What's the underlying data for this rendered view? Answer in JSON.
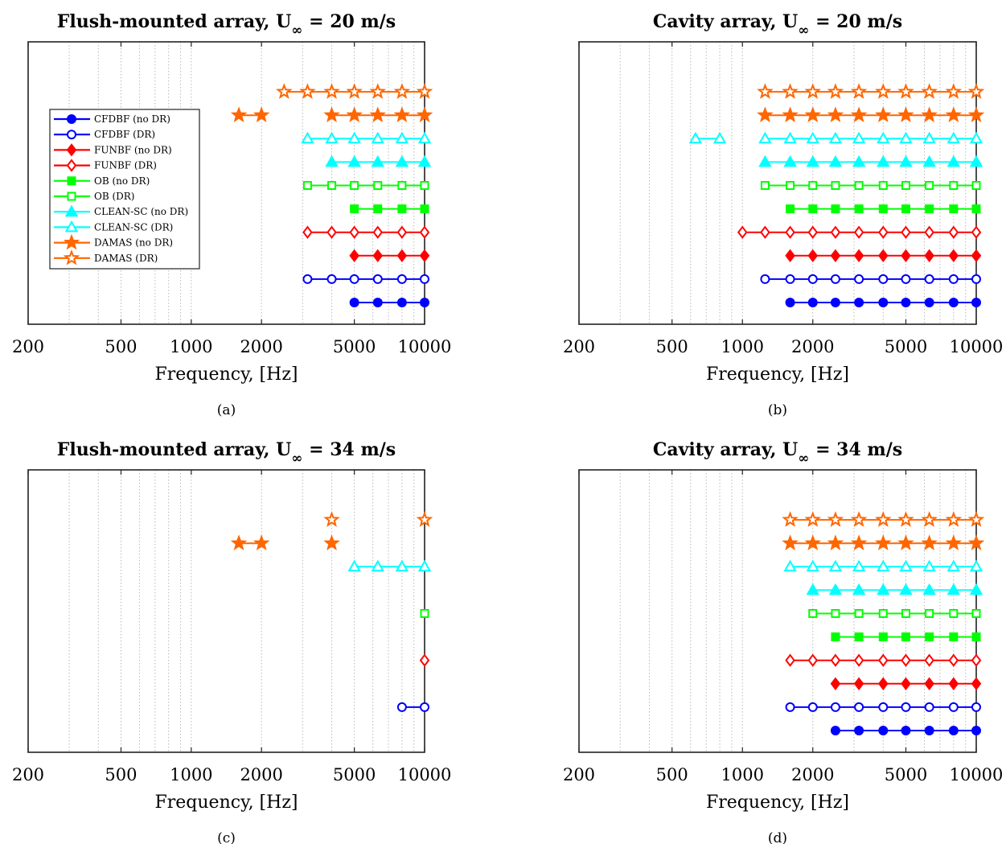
{
  "chart_data": [
    {
      "type": "scatter",
      "caption": "(a)",
      "title": {
        "pre": "Flush-mounted array, U",
        "sub": "∞",
        "post": " = 20 m/s"
      },
      "xlabel": "Frequency, [Hz]",
      "xscale": "log",
      "xlim": [
        200,
        10000
      ],
      "xticks": [
        200,
        500,
        1000,
        2000,
        5000,
        10000
      ],
      "xtick_labels": [
        "200",
        "500",
        "1000",
        "2000",
        "5000",
        "10000"
      ],
      "grid": "vertical dotted",
      "legend_position": "left",
      "series": [
        {
          "name": "CFDBF (no DR)",
          "color": "#0000FF",
          "marker": "circle",
          "filled": true,
          "row": 1,
          "segments": [
            [
              5000,
              6300,
              8000,
              10000
            ]
          ]
        },
        {
          "name": "CFDBF (DR)",
          "color": "#0000FF",
          "marker": "circle",
          "filled": false,
          "row": 2,
          "segments": [
            [
              3150,
              4000,
              5000,
              6300,
              8000,
              10000
            ]
          ]
        },
        {
          "name": "FUNBF (no DR)",
          "color": "#FF0000",
          "marker": "diamond",
          "filled": true,
          "row": 3,
          "segments": [
            [
              5000,
              6300,
              8000,
              10000
            ]
          ]
        },
        {
          "name": "FUNBF (DR)",
          "color": "#FF0000",
          "marker": "diamond",
          "filled": false,
          "row": 4,
          "segments": [
            [
              3150,
              4000,
              5000,
              6300,
              8000,
              10000
            ]
          ]
        },
        {
          "name": "OB (no DR)",
          "color": "#00FF00",
          "marker": "square",
          "filled": true,
          "row": 5,
          "segments": [
            [
              5000,
              6300,
              8000,
              10000
            ]
          ]
        },
        {
          "name": "OB (DR)",
          "color": "#00FF00",
          "marker": "square",
          "filled": false,
          "row": 6,
          "segments": [
            [
              3150,
              4000,
              5000,
              6300,
              8000,
              10000
            ]
          ]
        },
        {
          "name": "CLEAN-SC (no DR)",
          "color": "#00FFFF",
          "marker": "triangle",
          "filled": true,
          "row": 7,
          "segments": [
            [
              4000,
              5000,
              6300,
              8000,
              10000
            ]
          ]
        },
        {
          "name": "CLEAN-SC (DR)",
          "color": "#00FFFF",
          "marker": "triangle",
          "filled": false,
          "row": 8,
          "segments": [
            [
              3150,
              4000,
              5000,
              6300,
              8000,
              10000
            ]
          ]
        },
        {
          "name": "DAMAS (no DR)",
          "color": "#FF6600",
          "marker": "star",
          "filled": true,
          "row": 9,
          "segments": [
            [
              1600,
              2000
            ],
            [
              4000,
              5000,
              6300,
              8000,
              10000
            ]
          ]
        },
        {
          "name": "DAMAS (DR)",
          "color": "#FF6600",
          "marker": "star",
          "filled": false,
          "row": 10,
          "segments": [
            [
              2500,
              3150,
              4000,
              5000,
              6300,
              8000,
              10000
            ]
          ]
        }
      ]
    },
    {
      "type": "scatter",
      "caption": "(b)",
      "title": {
        "pre": "Cavity array, U",
        "sub": "∞",
        "post": " = 20 m/s"
      },
      "xlabel": "Frequency, [Hz]",
      "xscale": "log",
      "xlim": [
        200,
        10000
      ],
      "xticks": [
        200,
        500,
        1000,
        2000,
        5000,
        10000
      ],
      "xtick_labels": [
        "200",
        "500",
        "1000",
        "2000",
        "5000",
        "10000"
      ],
      "grid": "vertical dotted",
      "series": [
        {
          "name": "CFDBF (no DR)",
          "color": "#0000FF",
          "marker": "circle",
          "filled": true,
          "row": 1,
          "segments": [
            [
              1600,
              2000,
              2500,
              3150,
              4000,
              5000,
              6300,
              8000,
              10000
            ]
          ]
        },
        {
          "name": "CFDBF (DR)",
          "color": "#0000FF",
          "marker": "circle",
          "filled": false,
          "row": 2,
          "segments": [
            [
              1250,
              1600,
              2000,
              2500,
              3150,
              4000,
              5000,
              6300,
              8000,
              10000
            ]
          ]
        },
        {
          "name": "FUNBF (no DR)",
          "color": "#FF0000",
          "marker": "diamond",
          "filled": true,
          "row": 3,
          "segments": [
            [
              1600,
              2000,
              2500,
              3150,
              4000,
              5000,
              6300,
              8000,
              10000
            ]
          ]
        },
        {
          "name": "FUNBF (DR)",
          "color": "#FF0000",
          "marker": "diamond",
          "filled": false,
          "row": 4,
          "segments": [
            [
              1000,
              1250,
              1600,
              2000,
              2500,
              3150,
              4000,
              5000,
              6300,
              8000,
              10000
            ]
          ]
        },
        {
          "name": "OB (no DR)",
          "color": "#00FF00",
          "marker": "square",
          "filled": true,
          "row": 5,
          "segments": [
            [
              1600,
              2000,
              2500,
              3150,
              4000,
              5000,
              6300,
              8000,
              10000
            ]
          ]
        },
        {
          "name": "OB (DR)",
          "color": "#00FF00",
          "marker": "square",
          "filled": false,
          "row": 6,
          "segments": [
            [
              1250,
              1600,
              2000,
              2500,
              3150,
              4000,
              5000,
              6300,
              8000,
              10000
            ]
          ]
        },
        {
          "name": "CLEAN-SC (no DR)",
          "color": "#00FFFF",
          "marker": "triangle",
          "filled": true,
          "row": 7,
          "segments": [
            [
              1250,
              1600,
              2000,
              2500,
              3150,
              4000,
              5000,
              6300,
              8000,
              10000
            ]
          ]
        },
        {
          "name": "CLEAN-SC (DR)",
          "color": "#00FFFF",
          "marker": "triangle",
          "filled": false,
          "row": 8,
          "segments": [
            [
              630,
              800
            ],
            [
              1250,
              1600,
              2000,
              2500,
              3150,
              4000,
              5000,
              6300,
              8000,
              10000
            ]
          ]
        },
        {
          "name": "DAMAS (no DR)",
          "color": "#FF6600",
          "marker": "star",
          "filled": true,
          "row": 9,
          "segments": [
            [
              1250,
              1600,
              2000,
              2500,
              3150,
              4000,
              5000,
              6300,
              8000,
              10000
            ]
          ]
        },
        {
          "name": "DAMAS (DR)",
          "color": "#FF6600",
          "marker": "star",
          "filled": false,
          "row": 10,
          "segments": [
            [
              1250,
              1600,
              2000,
              2500,
              3150,
              4000,
              5000,
              6300,
              8000,
              10000
            ]
          ]
        }
      ]
    },
    {
      "type": "scatter",
      "caption": "(c)",
      "title": {
        "pre": "Flush-mounted array, U",
        "sub": "∞",
        "post": " = 34 m/s"
      },
      "xlabel": "Frequency, [Hz]",
      "xscale": "log",
      "xlim": [
        200,
        10000
      ],
      "xticks": [
        200,
        500,
        1000,
        2000,
        5000,
        10000
      ],
      "xtick_labels": [
        "200",
        "500",
        "1000",
        "2000",
        "5000",
        "10000"
      ],
      "grid": "vertical dotted",
      "series": [
        {
          "name": "CFDBF (DR)",
          "color": "#0000FF",
          "marker": "circle",
          "filled": false,
          "row": 2,
          "segments": [
            [
              8000,
              10000
            ]
          ]
        },
        {
          "name": "FUNBF (DR)",
          "color": "#FF0000",
          "marker": "diamond",
          "filled": false,
          "row": 4,
          "segments": [
            [
              10000
            ]
          ]
        },
        {
          "name": "OB (DR)",
          "color": "#00FF00",
          "marker": "square",
          "filled": false,
          "row": 6,
          "segments": [
            [
              10000
            ]
          ]
        },
        {
          "name": "CLEAN-SC (DR)",
          "color": "#00FFFF",
          "marker": "triangle",
          "filled": false,
          "row": 8,
          "segments": [
            [
              5000,
              6300,
              8000,
              10000
            ]
          ]
        },
        {
          "name": "DAMAS (no DR)",
          "color": "#FF6600",
          "marker": "star",
          "filled": true,
          "row": 9,
          "segments": [
            [
              1600,
              2000
            ],
            [
              4000
            ]
          ]
        },
        {
          "name": "DAMAS (DR)",
          "color": "#FF6600",
          "marker": "star",
          "filled": false,
          "row": 10,
          "segments": [
            [
              4000
            ],
            [
              10000
            ]
          ]
        }
      ]
    },
    {
      "type": "scatter",
      "caption": "(d)",
      "title": {
        "pre": "Cavity array, U",
        "sub": "∞",
        "post": " = 34 m/s"
      },
      "xlabel": "Frequency, [Hz]",
      "xscale": "log",
      "xlim": [
        200,
        10000
      ],
      "xticks": [
        200,
        500,
        1000,
        2000,
        5000,
        10000
      ],
      "xtick_labels": [
        "200",
        "500",
        "1000",
        "2000",
        "5000",
        "10000"
      ],
      "grid": "vertical dotted",
      "series": [
        {
          "name": "CFDBF (no DR)",
          "color": "#0000FF",
          "marker": "circle",
          "filled": true,
          "row": 1,
          "segments": [
            [
              2500,
              3150,
              4000,
              5000,
              6300,
              8000,
              10000
            ]
          ]
        },
        {
          "name": "CFDBF (DR)",
          "color": "#0000FF",
          "marker": "circle",
          "filled": false,
          "row": 2,
          "segments": [
            [
              1600,
              2000,
              2500,
              3150,
              4000,
              5000,
              6300,
              8000,
              10000
            ]
          ]
        },
        {
          "name": "FUNBF (no DR)",
          "color": "#FF0000",
          "marker": "diamond",
          "filled": true,
          "row": 3,
          "segments": [
            [
              2500,
              3150,
              4000,
              5000,
              6300,
              8000,
              10000
            ]
          ]
        },
        {
          "name": "FUNBF (DR)",
          "color": "#FF0000",
          "marker": "diamond",
          "filled": false,
          "row": 4,
          "segments": [
            [
              1600,
              2000,
              2500,
              3150,
              4000,
              5000,
              6300,
              8000,
              10000
            ]
          ]
        },
        {
          "name": "OB (no DR)",
          "color": "#00FF00",
          "marker": "square",
          "filled": true,
          "row": 5,
          "segments": [
            [
              2500,
              3150,
              4000,
              5000,
              6300,
              8000,
              10000
            ]
          ]
        },
        {
          "name": "OB (DR)",
          "color": "#00FF00",
          "marker": "square",
          "filled": false,
          "row": 6,
          "segments": [
            [
              2000,
              2500,
              3150,
              4000,
              5000,
              6300,
              8000,
              10000
            ]
          ]
        },
        {
          "name": "CLEAN-SC (no DR)",
          "color": "#00FFFF",
          "marker": "triangle",
          "filled": true,
          "row": 7,
          "segments": [
            [
              2000,
              2500,
              3150,
              4000,
              5000,
              6300,
              8000,
              10000
            ]
          ]
        },
        {
          "name": "CLEAN-SC (DR)",
          "color": "#00FFFF",
          "marker": "triangle",
          "filled": false,
          "row": 8,
          "segments": [
            [
              1600,
              2000,
              2500,
              3150,
              4000,
              5000,
              6300,
              8000,
              10000
            ]
          ]
        },
        {
          "name": "DAMAS (no DR)",
          "color": "#FF6600",
          "marker": "star",
          "filled": true,
          "row": 9,
          "segments": [
            [
              1600,
              2000,
              2500,
              3150,
              4000,
              5000,
              6300,
              8000,
              10000
            ]
          ]
        },
        {
          "name": "DAMAS (DR)",
          "color": "#FF6600",
          "marker": "star",
          "filled": false,
          "row": 10,
          "segments": [
            [
              1600,
              2000,
              2500,
              3150,
              4000,
              5000,
              6300,
              8000,
              10000
            ]
          ]
        }
      ]
    }
  ]
}
